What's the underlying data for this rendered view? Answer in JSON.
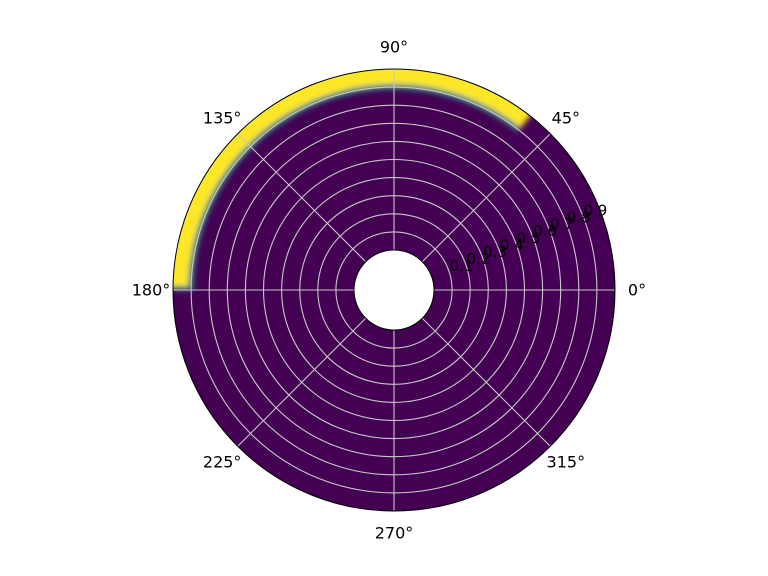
{
  "chart_data": {
    "type": "heatmap",
    "projection": "polar",
    "title": "",
    "theta_unit": "degrees",
    "theta_ticks": [
      0,
      45,
      90,
      135,
      180,
      225,
      270,
      315
    ],
    "theta_tick_labels": [
      "0°",
      "45°",
      "90°",
      "135°",
      "180°",
      "225°",
      "270°",
      "315°"
    ],
    "r_range": [
      0,
      1
    ],
    "r_origin_hole": 0.2,
    "r_ticks": [
      0.1,
      0.2,
      0.3,
      0.4,
      0.5,
      0.6,
      0.7,
      0.8,
      0.9
    ],
    "r_tick_labels": [
      "0.1",
      "0.2",
      "0.3",
      "0.4",
      "0.5",
      "0.6",
      "0.7",
      "0.8",
      "0.9"
    ],
    "r_label_angle": 22.5,
    "grid": true,
    "colormap": "viridis",
    "value_range": [
      0,
      1
    ],
    "background_value": 0,
    "band": {
      "theta_start": 0,
      "theta_end": 180,
      "visible_theta_start": 52,
      "r_inner": 0.9,
      "r_outer": 1.0,
      "value": 1
    },
    "colors": {
      "low": "#440154",
      "mid": "#21918c",
      "high": "#fde725",
      "grid": "#c8c8c8",
      "frame": "#000000"
    }
  }
}
